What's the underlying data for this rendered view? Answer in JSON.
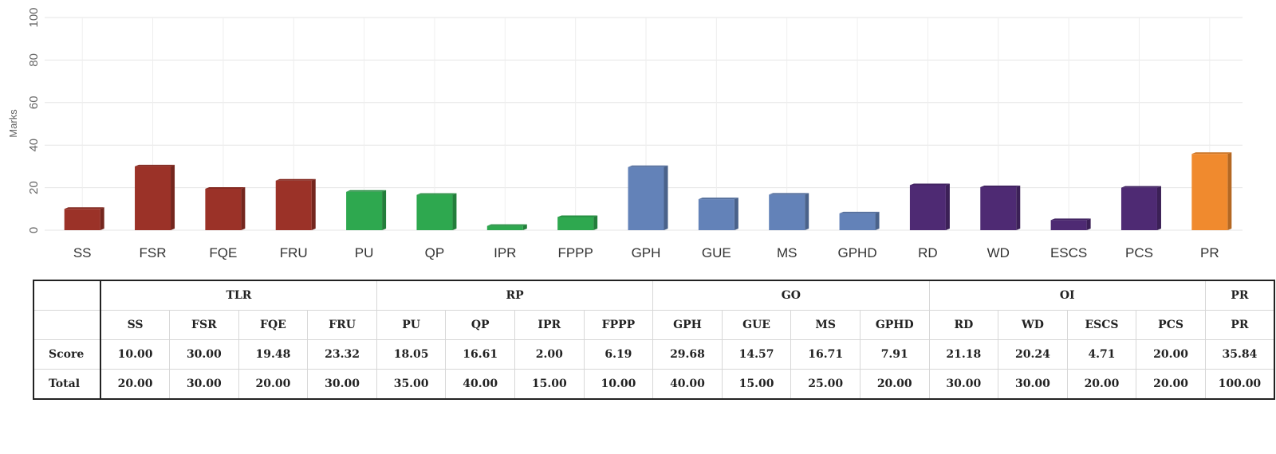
{
  "chart_data": {
    "type": "bar",
    "ylabel": "Marks",
    "ylim": [
      0,
      100
    ],
    "yticks": [
      0,
      20,
      40,
      60,
      80,
      100
    ],
    "grid": true,
    "categories": [
      "SS",
      "FSR",
      "FQE",
      "FRU",
      "PU",
      "QP",
      "IPR",
      "FPPP",
      "GPH",
      "GUE",
      "MS",
      "GPHD",
      "RD",
      "WD",
      "ESCS",
      "PCS",
      "PR"
    ],
    "values": [
      10.0,
      30.0,
      19.48,
      23.32,
      18.05,
      16.61,
      2.0,
      6.19,
      29.68,
      14.57,
      16.71,
      7.91,
      21.18,
      20.24,
      4.71,
      20.0,
      35.84
    ],
    "groups": [
      {
        "name": "TLR",
        "count": 4,
        "color": "#9b3228"
      },
      {
        "name": "RP",
        "count": 4,
        "color": "#2ea84f"
      },
      {
        "name": "GO",
        "count": 4,
        "color": "#6382b8"
      },
      {
        "name": "OI",
        "count": 4,
        "color": "#4e2a73"
      },
      {
        "name": "PR",
        "count": 1,
        "color": "#f08a2e"
      }
    ]
  },
  "table": {
    "row_labels": {
      "score": "Score",
      "total": "Total"
    },
    "groups": [
      {
        "name": "TLR",
        "span": 4
      },
      {
        "name": "RP",
        "span": 4
      },
      {
        "name": "GO",
        "span": 4
      },
      {
        "name": "OI",
        "span": 4
      },
      {
        "name": "PR",
        "span": 1
      }
    ],
    "columns": [
      "SS",
      "FSR",
      "FQE",
      "FRU",
      "PU",
      "QP",
      "IPR",
      "FPPP",
      "GPH",
      "GUE",
      "MS",
      "GPHD",
      "RD",
      "WD",
      "ESCS",
      "PCS",
      "PR"
    ],
    "score": [
      "10.00",
      "30.00",
      "19.48",
      "23.32",
      "18.05",
      "16.61",
      "2.00",
      "6.19",
      "29.68",
      "14.57",
      "16.71",
      "7.91",
      "21.18",
      "20.24",
      "4.71",
      "20.00",
      "35.84"
    ],
    "total": [
      "20.00",
      "30.00",
      "20.00",
      "30.00",
      "35.00",
      "40.00",
      "15.00",
      "10.00",
      "40.00",
      "15.00",
      "25.00",
      "20.00",
      "30.00",
      "30.00",
      "20.00",
      "20.00",
      "100.00"
    ]
  }
}
